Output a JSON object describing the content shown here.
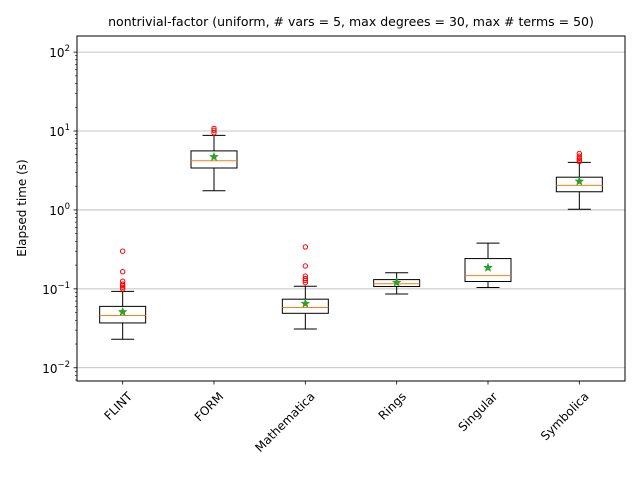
{
  "chart_data": {
    "type": "box",
    "title": "nontrivial-factor (uniform, # vars = 5, max degrees = 30, max # terms = 50)",
    "xlabel": "",
    "ylabel": "Elapsed time (s)",
    "yscale": "log",
    "ylim": [
      0.0068,
      160
    ],
    "yticks": [
      0.01,
      0.1,
      1,
      10,
      100
    ],
    "ytick_labels": [
      {
        "base": "10",
        "exp": "−2"
      },
      {
        "base": "10",
        "exp": "−1"
      },
      {
        "base": "10",
        "exp": "0"
      },
      {
        "base": "10",
        "exp": "1"
      },
      {
        "base": "10",
        "exp": "2"
      }
    ],
    "grid": "y-major",
    "categories": [
      "FLINT",
      "FORM",
      "Mathematica",
      "Rings",
      "Singular",
      "Symbolica"
    ],
    "boxes": [
      {
        "name": "FLINT",
        "whisker_low": 0.023,
        "q1": 0.037,
        "median": 0.046,
        "q3": 0.06,
        "whisker_high": 0.093,
        "mean": 0.051,
        "outliers": [
          0.1,
          0.105,
          0.11,
          0.115,
          0.125,
          0.165,
          0.3
        ]
      },
      {
        "name": "FORM",
        "whisker_low": 1.75,
        "q1": 3.4,
        "median": 4.2,
        "q3": 5.6,
        "whisker_high": 8.8,
        "mean": 4.7,
        "outliers": [
          9.5,
          10.2,
          10.8
        ]
      },
      {
        "name": "Mathematica",
        "whisker_low": 0.031,
        "q1": 0.049,
        "median": 0.058,
        "q3": 0.074,
        "whisker_high": 0.108,
        "mean": 0.065,
        "outliers": [
          0.12,
          0.128,
          0.135,
          0.145,
          0.195,
          0.34
        ]
      },
      {
        "name": "Rings",
        "whisker_low": 0.086,
        "q1": 0.107,
        "median": 0.116,
        "q3": 0.131,
        "whisker_high": 0.16,
        "mean": 0.12,
        "outliers": []
      },
      {
        "name": "Singular",
        "whisker_low": 0.104,
        "q1": 0.124,
        "median": 0.147,
        "q3": 0.242,
        "whisker_high": 0.38,
        "mean": 0.185,
        "outliers": []
      },
      {
        "name": "Symbolica",
        "whisker_low": 1.02,
        "q1": 1.7,
        "median": 2.05,
        "q3": 2.6,
        "whisker_high": 4.0,
        "mean": 2.3,
        "outliers": [
          4.1,
          4.3,
          4.5,
          4.8,
          5.2
        ]
      }
    ],
    "colors": {
      "box": "#000000",
      "median": "#ff7f0e",
      "mean": "#2ca02c",
      "outlier": "#ff0000",
      "grid": "#b0b0b0"
    }
  }
}
